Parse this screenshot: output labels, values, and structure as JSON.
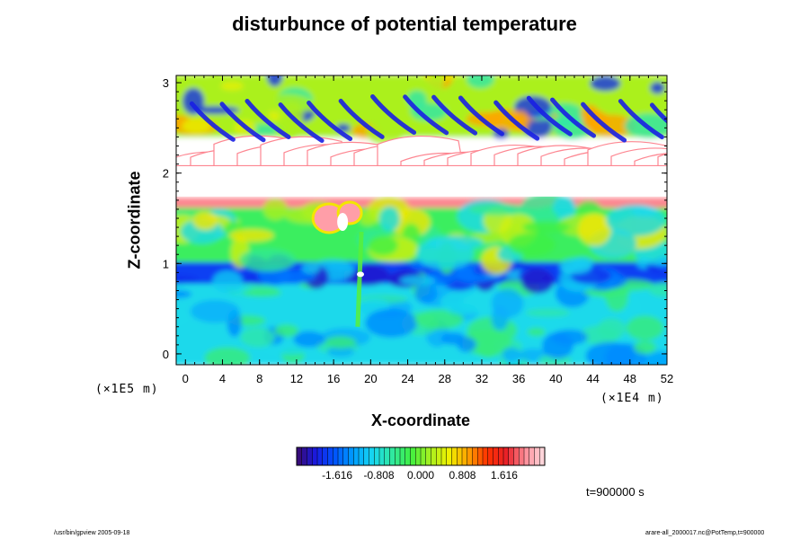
{
  "chart_data": {
    "type": "heatmap",
    "title": "disturbunce of potential temperature",
    "xlabel": "X-coordinate",
    "ylabel": "Z-coordinate",
    "x_unit": "(×1E4 m)",
    "z_unit": "(×1E5 m)",
    "xlim": [
      -1,
      52
    ],
    "zlim": [
      -0.12,
      3.08
    ],
    "x_ticks": [
      0,
      4,
      8,
      12,
      16,
      20,
      24,
      28,
      32,
      36,
      40,
      44,
      48,
      52
    ],
    "z_ticks": [
      0,
      1,
      2,
      3
    ],
    "colorbar": {
      "ticks": [
        -1.616,
        -0.808,
        0.0,
        0.808,
        1.616
      ],
      "tick_labels": [
        "-1.616",
        "-0.808",
        "0.000",
        "0.808",
        "1.616"
      ],
      "range": [
        -2.4,
        2.4
      ],
      "colors": [
        "#3a0a6a",
        "#1a1ae0",
        "#0055ff",
        "#00a0ff",
        "#18d8f0",
        "#30e8a0",
        "#40f040",
        "#a8f020",
        "#f0f000",
        "#ffa000",
        "#ff3000",
        "#e82028",
        "#ff8f9a",
        "#ffdfe3"
      ]
    },
    "layers": [
      {
        "z_range": [
          -0.12,
          0.78
        ],
        "description_value": -0.9
      },
      {
        "z_range": [
          0.78,
          1.02
        ],
        "description_value": -1.8
      },
      {
        "z_range": [
          1.02,
          1.62
        ],
        "description_value": -0.3
      },
      {
        "z_range": [
          1.62,
          1.74
        ],
        "description_value": 2.0
      },
      {
        "z_range": [
          1.74,
          2.4
        ],
        "description_value": null
      },
      {
        "z_range": [
          2.4,
          3.08
        ],
        "description_value": 0.2
      }
    ],
    "time_label": "t=900000 s"
  },
  "footer": {
    "left": "/usr/bin/gpview 2005-09-18",
    "right": "arare-all_2000017.nc@PotTemp,t=900000"
  }
}
